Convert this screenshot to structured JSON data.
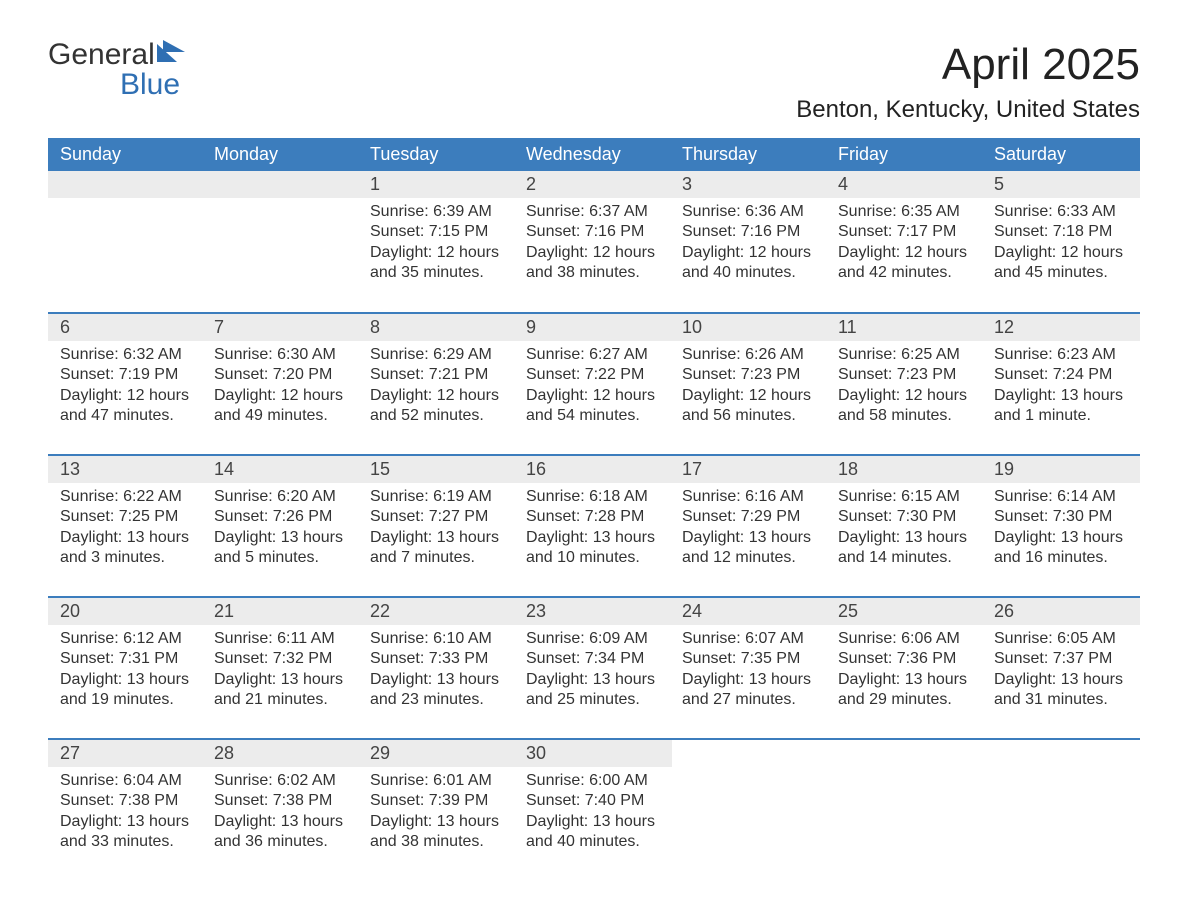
{
  "logo": {
    "word1": "General",
    "word2": "Blue"
  },
  "title": "April 2025",
  "location": "Benton, Kentucky, United States",
  "colors": {
    "header_bg": "#3c7dbd",
    "header_text": "#ffffff",
    "daynum_bg": "#ececec",
    "text": "#333333",
    "logo_blue": "#2f6fb3",
    "page_bg": "#ffffff"
  },
  "day_names": [
    "Sunday",
    "Monday",
    "Tuesday",
    "Wednesday",
    "Thursday",
    "Friday",
    "Saturday"
  ],
  "weeks": [
    [
      {
        "num": "",
        "lines": []
      },
      {
        "num": "",
        "lines": []
      },
      {
        "num": "1",
        "lines": [
          "Sunrise: 6:39 AM",
          "Sunset: 7:15 PM",
          "Daylight: 12 hours and 35 minutes."
        ]
      },
      {
        "num": "2",
        "lines": [
          "Sunrise: 6:37 AM",
          "Sunset: 7:16 PM",
          "Daylight: 12 hours and 38 minutes."
        ]
      },
      {
        "num": "3",
        "lines": [
          "Sunrise: 6:36 AM",
          "Sunset: 7:16 PM",
          "Daylight: 12 hours and 40 minutes."
        ]
      },
      {
        "num": "4",
        "lines": [
          "Sunrise: 6:35 AM",
          "Sunset: 7:17 PM",
          "Daylight: 12 hours and 42 minutes."
        ]
      },
      {
        "num": "5",
        "lines": [
          "Sunrise: 6:33 AM",
          "Sunset: 7:18 PM",
          "Daylight: 12 hours and 45 minutes."
        ]
      }
    ],
    [
      {
        "num": "6",
        "lines": [
          "Sunrise: 6:32 AM",
          "Sunset: 7:19 PM",
          "Daylight: 12 hours and 47 minutes."
        ]
      },
      {
        "num": "7",
        "lines": [
          "Sunrise: 6:30 AM",
          "Sunset: 7:20 PM",
          "Daylight: 12 hours and 49 minutes."
        ]
      },
      {
        "num": "8",
        "lines": [
          "Sunrise: 6:29 AM",
          "Sunset: 7:21 PM",
          "Daylight: 12 hours and 52 minutes."
        ]
      },
      {
        "num": "9",
        "lines": [
          "Sunrise: 6:27 AM",
          "Sunset: 7:22 PM",
          "Daylight: 12 hours and 54 minutes."
        ]
      },
      {
        "num": "10",
        "lines": [
          "Sunrise: 6:26 AM",
          "Sunset: 7:23 PM",
          "Daylight: 12 hours and 56 minutes."
        ]
      },
      {
        "num": "11",
        "lines": [
          "Sunrise: 6:25 AM",
          "Sunset: 7:23 PM",
          "Daylight: 12 hours and 58 minutes."
        ]
      },
      {
        "num": "12",
        "lines": [
          "Sunrise: 6:23 AM",
          "Sunset: 7:24 PM",
          "Daylight: 13 hours and 1 minute."
        ]
      }
    ],
    [
      {
        "num": "13",
        "lines": [
          "Sunrise: 6:22 AM",
          "Sunset: 7:25 PM",
          "Daylight: 13 hours and 3 minutes."
        ]
      },
      {
        "num": "14",
        "lines": [
          "Sunrise: 6:20 AM",
          "Sunset: 7:26 PM",
          "Daylight: 13 hours and 5 minutes."
        ]
      },
      {
        "num": "15",
        "lines": [
          "Sunrise: 6:19 AM",
          "Sunset: 7:27 PM",
          "Daylight: 13 hours and 7 minutes."
        ]
      },
      {
        "num": "16",
        "lines": [
          "Sunrise: 6:18 AM",
          "Sunset: 7:28 PM",
          "Daylight: 13 hours and 10 minutes."
        ]
      },
      {
        "num": "17",
        "lines": [
          "Sunrise: 6:16 AM",
          "Sunset: 7:29 PM",
          "Daylight: 13 hours and 12 minutes."
        ]
      },
      {
        "num": "18",
        "lines": [
          "Sunrise: 6:15 AM",
          "Sunset: 7:30 PM",
          "Daylight: 13 hours and 14 minutes."
        ]
      },
      {
        "num": "19",
        "lines": [
          "Sunrise: 6:14 AM",
          "Sunset: 7:30 PM",
          "Daylight: 13 hours and 16 minutes."
        ]
      }
    ],
    [
      {
        "num": "20",
        "lines": [
          "Sunrise: 6:12 AM",
          "Sunset: 7:31 PM",
          "Daylight: 13 hours and 19 minutes."
        ]
      },
      {
        "num": "21",
        "lines": [
          "Sunrise: 6:11 AM",
          "Sunset: 7:32 PM",
          "Daylight: 13 hours and 21 minutes."
        ]
      },
      {
        "num": "22",
        "lines": [
          "Sunrise: 6:10 AM",
          "Sunset: 7:33 PM",
          "Daylight: 13 hours and 23 minutes."
        ]
      },
      {
        "num": "23",
        "lines": [
          "Sunrise: 6:09 AM",
          "Sunset: 7:34 PM",
          "Daylight: 13 hours and 25 minutes."
        ]
      },
      {
        "num": "24",
        "lines": [
          "Sunrise: 6:07 AM",
          "Sunset: 7:35 PM",
          "Daylight: 13 hours and 27 minutes."
        ]
      },
      {
        "num": "25",
        "lines": [
          "Sunrise: 6:06 AM",
          "Sunset: 7:36 PM",
          "Daylight: 13 hours and 29 minutes."
        ]
      },
      {
        "num": "26",
        "lines": [
          "Sunrise: 6:05 AM",
          "Sunset: 7:37 PM",
          "Daylight: 13 hours and 31 minutes."
        ]
      }
    ],
    [
      {
        "num": "27",
        "lines": [
          "Sunrise: 6:04 AM",
          "Sunset: 7:38 PM",
          "Daylight: 13 hours and 33 minutes."
        ]
      },
      {
        "num": "28",
        "lines": [
          "Sunrise: 6:02 AM",
          "Sunset: 7:38 PM",
          "Daylight: 13 hours and 36 minutes."
        ]
      },
      {
        "num": "29",
        "lines": [
          "Sunrise: 6:01 AM",
          "Sunset: 7:39 PM",
          "Daylight: 13 hours and 38 minutes."
        ]
      },
      {
        "num": "30",
        "lines": [
          "Sunrise: 6:00 AM",
          "Sunset: 7:40 PM",
          "Daylight: 13 hours and 40 minutes."
        ]
      },
      {
        "num": "",
        "lines": []
      },
      {
        "num": "",
        "lines": []
      },
      {
        "num": "",
        "lines": []
      }
    ]
  ]
}
